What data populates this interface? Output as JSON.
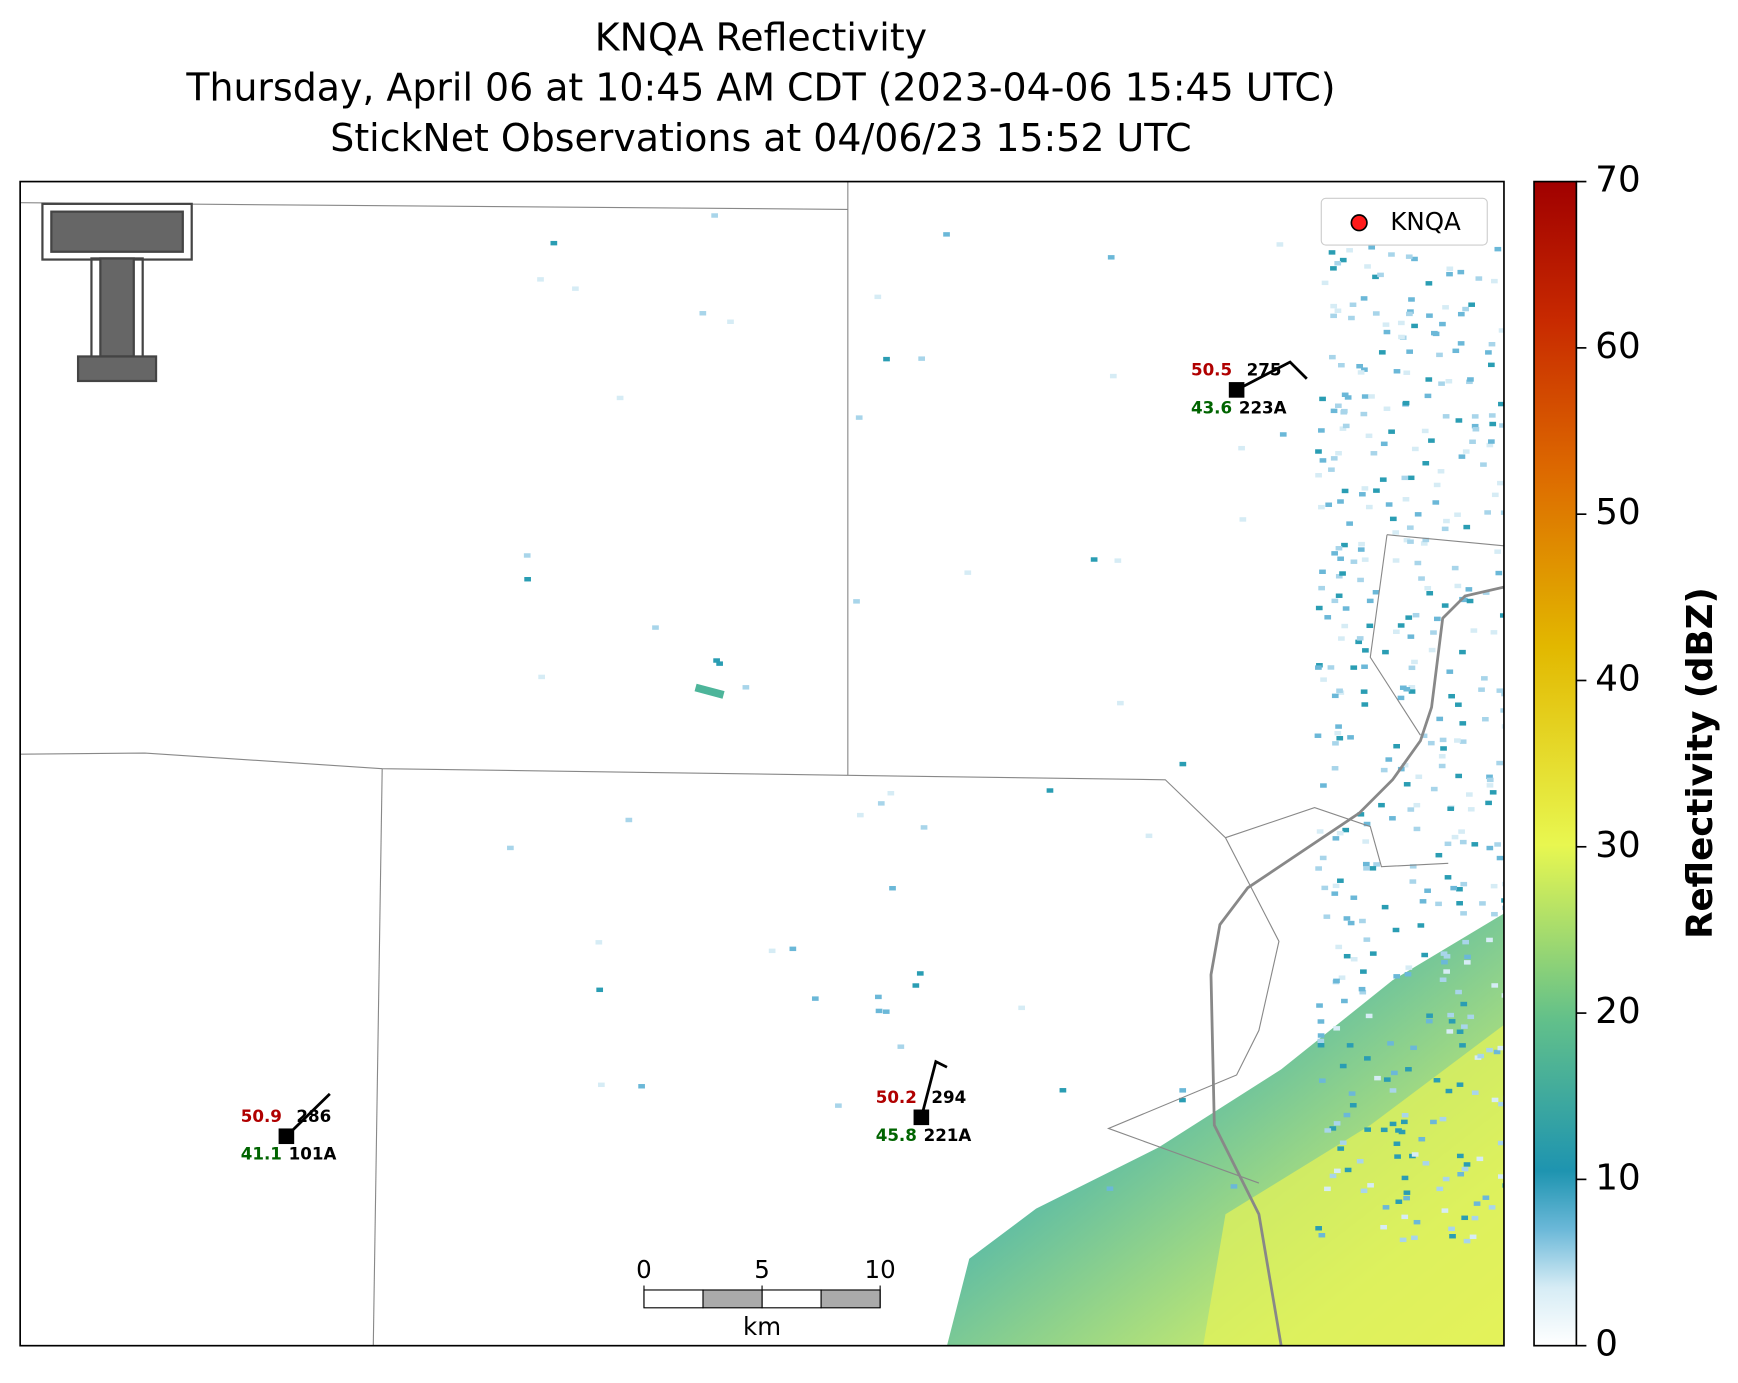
{
  "title": [
    "KNQA Reflectivity",
    "Thursday, April 06 at 10:45 AM CDT (2023-04-06 15:45 UTC)",
    "StickNet Observations at 04/06/23 15:52 UTC"
  ],
  "legend": {
    "label": "KNQA",
    "color": "#ff1a1a"
  },
  "colorbar": {
    "label": "Reflectivity (dBZ)",
    "lim": [
      0,
      70
    ],
    "ticks": [
      0,
      10,
      20,
      30,
      40,
      50,
      60,
      70
    ]
  },
  "stations": [
    {
      "id": "223A",
      "temperature": 50.5,
      "dewpoint": 43.6,
      "direction": 275
    },
    {
      "id": "221A",
      "temperature": 50.2,
      "dewpoint": 45.8,
      "direction": 294
    },
    {
      "id": "101A",
      "temperature": 50.9,
      "dewpoint": 41.1,
      "direction": 286
    }
  ],
  "scalebar": {
    "ticks": [
      0,
      5,
      10
    ],
    "unit": "km"
  }
}
